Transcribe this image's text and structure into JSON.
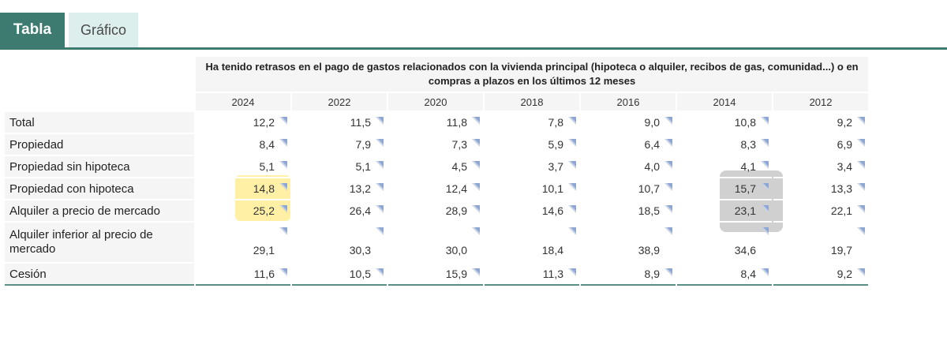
{
  "tabs": {
    "table_label": "Tabla",
    "chart_label": "Gráfico"
  },
  "table": {
    "title": "Ha tenido retrasos en el pago de gastos relacionados con la vivienda principal (hipoteca o alquiler, recibos de gas, comunidad...) o en compras a plazos en los últimos 12 meses",
    "years": [
      "2024",
      "2022",
      "2020",
      "2018",
      "2016",
      "2014",
      "2012"
    ],
    "rows": [
      {
        "label": "Total",
        "values": [
          "12,2",
          "11,5",
          "11,8",
          "7,8",
          "9,0",
          "10,8",
          "9,2"
        ]
      },
      {
        "label": "Propiedad",
        "values": [
          "8,4",
          "7,9",
          "7,3",
          "5,9",
          "6,4",
          "8,3",
          "6,9"
        ]
      },
      {
        "label": "Propiedad sin hipoteca",
        "values": [
          "5,1",
          "5,1",
          "4,5",
          "3,7",
          "4,0",
          "4,1",
          "3,4"
        ]
      },
      {
        "label": "Propiedad con hipoteca",
        "values": [
          "14,8",
          "13,2",
          "12,4",
          "10,1",
          "10,7",
          "15,7",
          "13,3"
        ]
      },
      {
        "label": "Alquiler a precio de mercado",
        "values": [
          "25,2",
          "26,4",
          "28,9",
          "14,6",
          "18,5",
          "23,1",
          "22,1"
        ]
      },
      {
        "label": "Alquiler inferior al precio de mercado",
        "values": [
          "29,1",
          "30,3",
          "30,0",
          "18,4",
          "38,9",
          "34,6",
          "19,7"
        ]
      },
      {
        "label": "Cesión",
        "values": [
          "11,6",
          "10,5",
          "15,9",
          "11,3",
          "8,9",
          "8,4",
          "9,2"
        ]
      }
    ]
  },
  "colors": {
    "accent": "#3d7a6f",
    "tab_inactive_bg": "#dcefec",
    "highlight_yellow": "#ffe45c",
    "highlight_gray": "#969696"
  }
}
